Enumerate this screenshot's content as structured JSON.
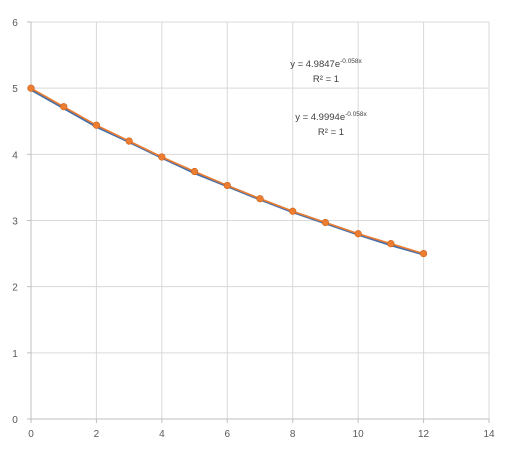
{
  "chart_data": {
    "type": "scatter",
    "title": "",
    "xlabel": "",
    "ylabel": "",
    "xlim": [
      0,
      14
    ],
    "ylim": [
      0,
      6
    ],
    "x_ticks": [
      0,
      2,
      4,
      6,
      8,
      10,
      12,
      14
    ],
    "y_ticks": [
      0,
      1,
      2,
      3,
      4,
      5,
      6
    ],
    "grid": true,
    "legend": "none",
    "series": [
      {
        "color": "#4a6fa5",
        "marker": "none",
        "x": [
          0,
          1,
          2,
          3,
          4,
          5,
          6,
          7,
          8,
          9,
          10,
          11,
          12
        ],
        "y": [
          4.98,
          4.7,
          4.42,
          4.19,
          3.95,
          3.72,
          3.52,
          3.32,
          3.13,
          2.96,
          2.79,
          2.63,
          2.49
        ]
      },
      {
        "color": "#ed7d31",
        "marker": "circle",
        "x": [
          0,
          1,
          2,
          3,
          4,
          5,
          6,
          7,
          8,
          9,
          10,
          11,
          12
        ],
        "y": [
          5.0,
          4.72,
          4.44,
          4.2,
          3.96,
          3.74,
          3.53,
          3.33,
          3.14,
          2.97,
          2.8,
          2.65,
          2.5
        ]
      }
    ],
    "annotations": [
      {
        "equation_base": "y = 4.9847e",
        "equation_exp": "-0.058x",
        "r2": "R² = 1"
      },
      {
        "equation_base": "y = 4.9994e",
        "equation_exp": "-0.058x",
        "r2": "R² = 1"
      }
    ]
  }
}
